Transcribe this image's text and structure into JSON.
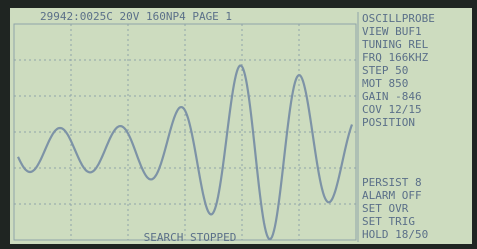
{
  "header": {
    "status": "29942:0025C 20V 160NP4 PAGE 1"
  },
  "side_panel": {
    "lines": [
      "OSCILLPROBE",
      "VIEW BUF1",
      "TUNING REL",
      "FRQ 166KHZ",
      "STEP 50",
      "MOT 850",
      "GAIN -846",
      "COV 12/15",
      "POSITION"
    ]
  },
  "settings": {
    "lines": [
      "PERSIST 8",
      "ALARM OFF",
      "SET OVR",
      "SET TRIG",
      "HOLD 18/50"
    ]
  },
  "footer": {
    "status": "SEARCH STOPPED"
  }
}
